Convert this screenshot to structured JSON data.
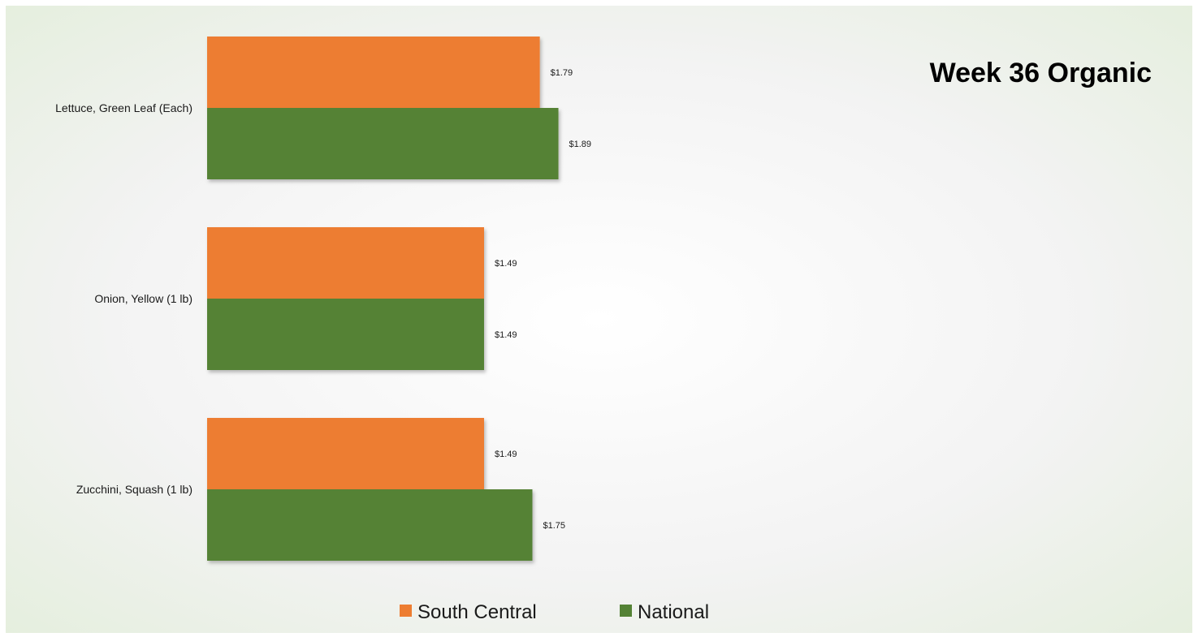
{
  "chart_data": {
    "type": "bar",
    "orientation": "horizontal",
    "title": "Week 36 Organic",
    "categories": [
      "Lettuce, Green Leaf (Each)",
      "Onion, Yellow (1 lb)",
      "Zucchini, Squash (1 lb)"
    ],
    "series": [
      {
        "name": "South Central",
        "color": "#ED7D31",
        "values": [
          1.79,
          1.49,
          1.49
        ],
        "labels": [
          "$1.79",
          "$1.49",
          "$1.49"
        ]
      },
      {
        "name": "National",
        "color": "#548235",
        "values": [
          1.89,
          1.49,
          1.75
        ],
        "labels": [
          "$1.89",
          "$1.49",
          "$1.75"
        ]
      }
    ],
    "xlim": [
      0,
      5.2
    ],
    "grid": false,
    "legend": "bottom",
    "background": {
      "center": "#ffffff",
      "edge": "#e3eedb"
    }
  }
}
